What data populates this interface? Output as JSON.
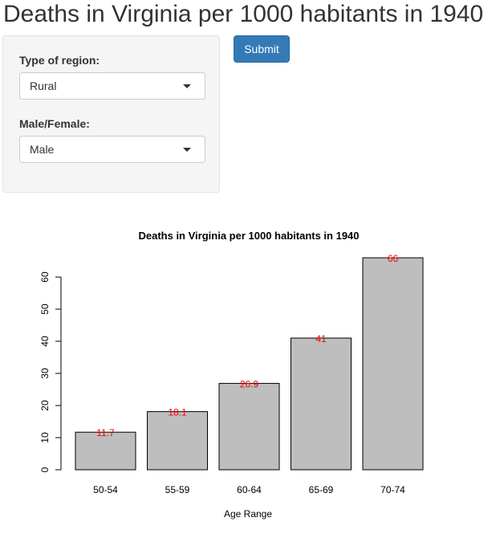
{
  "page": {
    "title": "Deaths in Virginia per 1000 habitants in 1940"
  },
  "sidebar": {
    "region": {
      "label": "Type of region:",
      "selected": "Rural"
    },
    "sex": {
      "label": "Male/Female:",
      "selected": "Male"
    }
  },
  "submit_label": "Submit",
  "colors": {
    "primary_button": "#337ab7",
    "bar_fill": "#bebebe",
    "data_label": "#ff0000"
  },
  "chart_data": {
    "type": "bar",
    "title": "Deaths in Virginia per 1000 habitants in 1940",
    "xlabel": "Age Range",
    "ylabel": "",
    "categories": [
      "50-54",
      "55-59",
      "60-64",
      "65-69",
      "70-74"
    ],
    "values": [
      11.7,
      18.1,
      26.9,
      41,
      66
    ],
    "data_labels": [
      "11.7",
      "18.1",
      "26.9",
      "41",
      "66"
    ],
    "yticks": [
      0,
      10,
      20,
      30,
      40,
      50,
      60
    ],
    "ylim": [
      0,
      66
    ],
    "grid": false,
    "legend": "none"
  }
}
